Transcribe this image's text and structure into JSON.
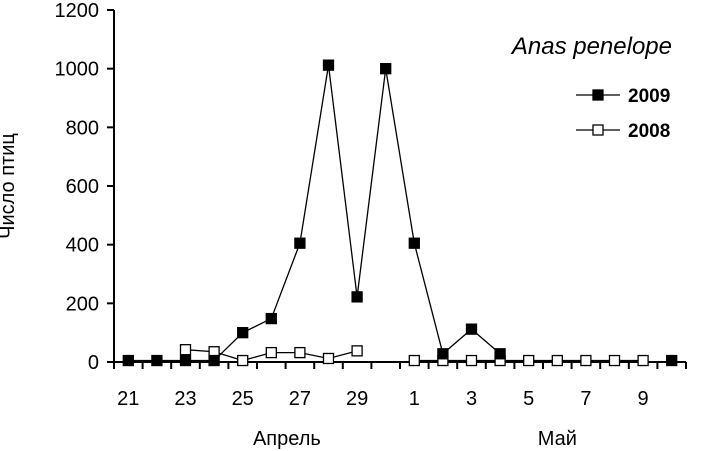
{
  "chart_data": {
    "type": "line",
    "title": "Anas penelope",
    "ylabel": "Число птиц",
    "ylim": [
      0,
      1200
    ],
    "yticks": [
      0,
      200,
      400,
      600,
      800,
      1000,
      1200
    ],
    "x": [
      "21",
      "22",
      "23",
      "24",
      "25",
      "26",
      "27",
      "28",
      "29",
      "30",
      "1",
      "2",
      "3",
      "4",
      "5",
      "6",
      "7",
      "8",
      "9",
      "10"
    ],
    "xtick_labels": [
      "21",
      "",
      "23",
      "",
      "25",
      "",
      "27",
      "",
      "29",
      "",
      "1",
      "",
      "3",
      "",
      "5",
      "",
      "7",
      "",
      "9",
      ""
    ],
    "month_labels": [
      "Апрель",
      "Май"
    ],
    "grid": false,
    "legend_position": "top-right",
    "series": [
      {
        "name": "2009",
        "marker": "filled-square",
        "color": "#000000",
        "values": [
          5,
          5,
          5,
          5,
          100,
          148,
          405,
          1012,
          222,
          1000,
          405,
          28,
          112,
          28,
          null,
          null,
          null,
          null,
          null,
          5
        ]
      },
      {
        "name": "2008",
        "marker": "open-square",
        "color": "#000000",
        "values": [
          null,
          null,
          42,
          35,
          5,
          32,
          32,
          12,
          38,
          null,
          5,
          5,
          5,
          5,
          5,
          5,
          5,
          5,
          5,
          null
        ]
      }
    ]
  }
}
